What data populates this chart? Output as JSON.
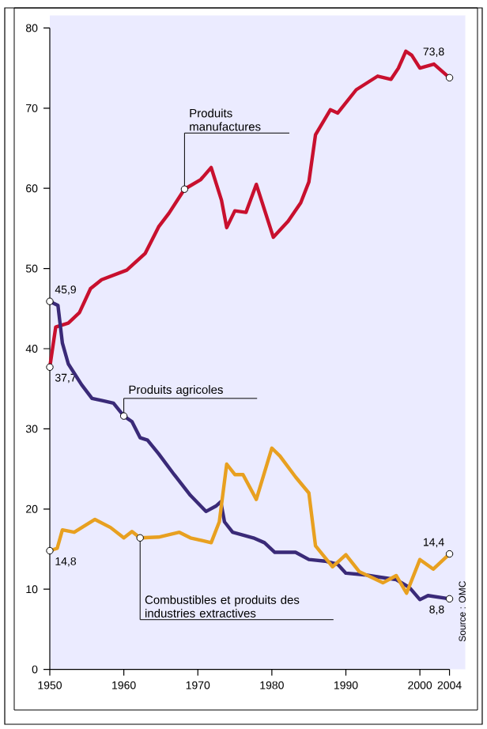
{
  "chart_data": {
    "type": "line",
    "xlim": [
      1950,
      2004
    ],
    "ylim": [
      0,
      80
    ],
    "xticks": [
      1950,
      1960,
      1970,
      1980,
      1990,
      2000,
      2004
    ],
    "yticks": [
      0,
      10,
      20,
      30,
      40,
      50,
      60,
      70,
      80
    ],
    "grid": false,
    "series": [
      {
        "color": "#c8102e",
        "x": [
          1950,
          1950.8,
          1952.5,
          1954,
          1955.5,
          1957,
          1960.4,
          1962.9,
          1964.7,
          1966.1,
          1968.2,
          1970.4,
          1971.8,
          1973.2,
          1973.9,
          1975,
          1976.5,
          1977.9,
          1980.2,
          1982.2,
          1983.9,
          1985,
          1985.9,
          1987.9,
          1988.9,
          1991.4,
          1994.3,
          1996.1,
          1997.1,
          1998.1,
          1998.9,
          2000,
          2001.9,
          2004
        ],
        "values": [
          37.7,
          42.7,
          43.2,
          44.5,
          47.5,
          48.6,
          49.8,
          51.9,
          55.2,
          56.9,
          59.9,
          61.1,
          62.6,
          58.5,
          55.1,
          57.2,
          57,
          60.5,
          53.9,
          55.9,
          58.2,
          60.8,
          66.7,
          69.8,
          69.4,
          72.3,
          74,
          73.6,
          75,
          77.1,
          76.6,
          75,
          75.5,
          73.8
        ],
        "value_labels": [
          "37,7",
          null,
          null,
          null,
          null,
          null,
          null,
          null,
          null,
          null,
          null,
          null,
          null,
          null,
          null,
          null,
          null,
          null,
          null,
          null,
          null,
          null,
          null,
          null,
          null,
          null,
          null,
          null,
          null,
          null,
          null,
          null,
          null,
          "73,8"
        ]
      },
      {
        "color": "#3a2a78",
        "x": [
          1950,
          1951.1,
          1951.7,
          1952.5,
          1954.3,
          1955.7,
          1957.2,
          1958.6,
          1960,
          1961.1,
          1962.2,
          1963.2,
          1964.7,
          1966.8,
          1969,
          1971.1,
          1972.5,
          1973.1,
          1973.6,
          1974.7,
          1977.5,
          1979,
          1980.4,
          1983.2,
          1985,
          1987.2,
          1988.9,
          1990,
          1992.5,
          1994.6,
          1996.8,
          1998.6,
          2000,
          2001.1,
          2004
        ],
        "values": [
          45.9,
          45.4,
          40.7,
          38.1,
          35.5,
          33.8,
          33.5,
          33.2,
          31.6,
          30.9,
          28.9,
          28.6,
          26.9,
          24.3,
          21.7,
          19.7,
          20.4,
          20.9,
          18.4,
          17.1,
          16.4,
          15.8,
          14.6,
          14.6,
          13.7,
          13.5,
          13.1,
          12,
          11.8,
          11.5,
          11.2,
          10.2,
          8.7,
          9.2,
          8.8
        ],
        "value_labels": [
          "45,9",
          null,
          null,
          null,
          null,
          null,
          null,
          null,
          null,
          null,
          null,
          null,
          null,
          null,
          null,
          null,
          null,
          null,
          null,
          null,
          null,
          null,
          null,
          null,
          null,
          null,
          null,
          null,
          null,
          null,
          null,
          null,
          null,
          null,
          "8,8"
        ]
      },
      {
        "color": "#e8a020",
        "x": [
          1950,
          1951,
          1951.7,
          1953.3,
          1956.1,
          1958.2,
          1960,
          1961.1,
          1962.2,
          1964.7,
          1967.5,
          1969,
          1971.8,
          1972.9,
          1973.9,
          1975,
          1976.1,
          1977.9,
          1980,
          1981.1,
          1983.2,
          1985,
          1985.9,
          1988.2,
          1990,
          1991.8,
          1995,
          1996.8,
          1998.2,
          2000,
          2001.8,
          2004
        ],
        "values": [
          14.8,
          15.1,
          17.4,
          17.1,
          18.7,
          17.7,
          16.4,
          17.2,
          16.4,
          16.5,
          17.1,
          16.4,
          15.8,
          18.4,
          25.6,
          24.3,
          24.3,
          21.2,
          27.6,
          26.6,
          24,
          22,
          15.4,
          12.8,
          14.3,
          12.2,
          10.8,
          11.7,
          9.5,
          13.7,
          12.5,
          14.4
        ],
        "value_labels": [
          "14,8",
          null,
          null,
          null,
          null,
          null,
          null,
          null,
          null,
          null,
          null,
          null,
          null,
          null,
          null,
          null,
          null,
          null,
          null,
          null,
          null,
          null,
          null,
          null,
          null,
          null,
          null,
          null,
          null,
          null,
          null,
          "14,4"
        ]
      }
    ],
    "annotations": [
      {
        "text": "Produits manufactures",
        "x": 1968.2,
        "y": 59.9
      },
      {
        "text": "Produits agricoles",
        "x": 1960,
        "y": 31.6
      },
      {
        "text": "Combustibles et produits des industries extractives",
        "x": 1962.2,
        "y": 16.4
      },
      "Source : OMC"
    ]
  }
}
